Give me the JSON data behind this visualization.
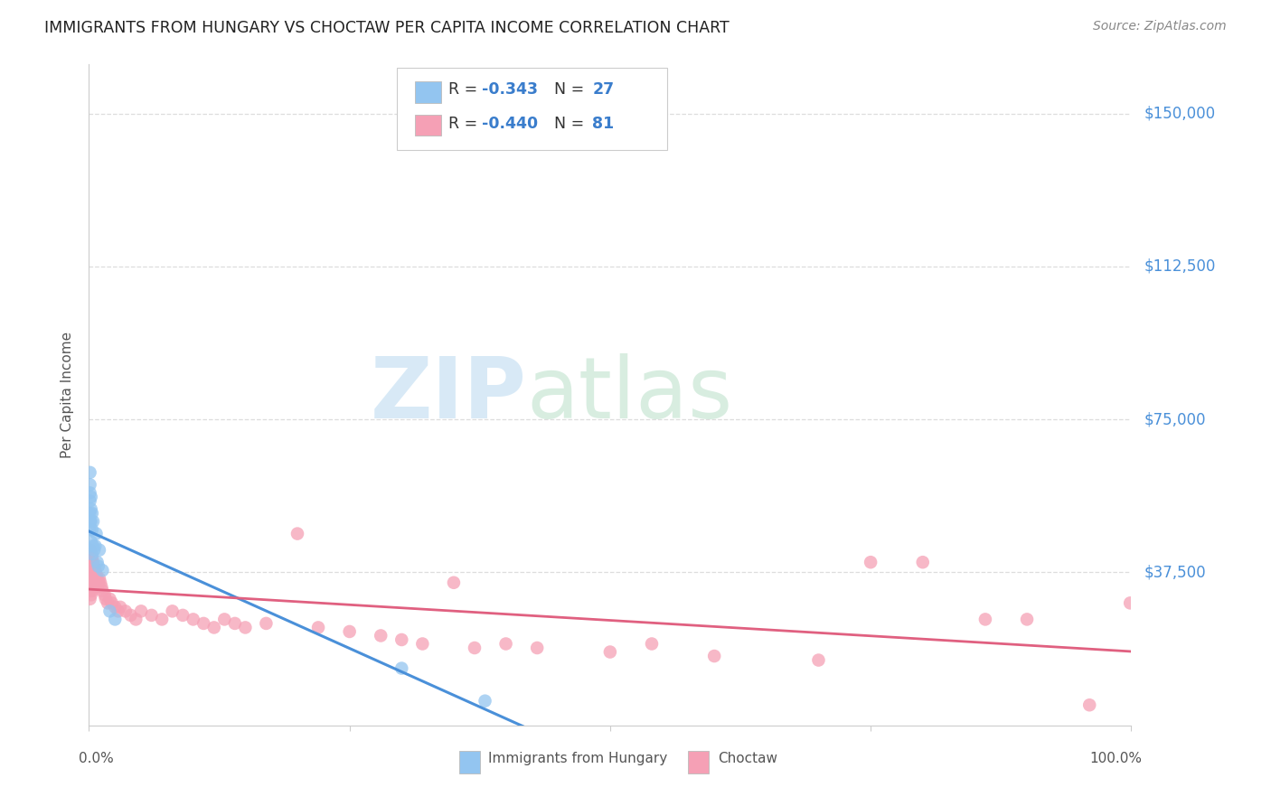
{
  "title": "IMMIGRANTS FROM HUNGARY VS CHOCTAW PER CAPITA INCOME CORRELATION CHART",
  "source": "Source: ZipAtlas.com",
  "ylabel": "Per Capita Income",
  "y_tick_labels": [
    "$150,000",
    "$112,500",
    "$75,000",
    "$37,500"
  ],
  "y_tick_values": [
    150000,
    112500,
    75000,
    37500
  ],
  "ylim": [
    0,
    162000
  ],
  "xlim": [
    0.0,
    1.0
  ],
  "background_color": "#ffffff",
  "blue_color": "#93c5f0",
  "pink_color": "#f5a0b5",
  "trendline_blue": "#4a90d9",
  "trendline_pink": "#e06080",
  "title_color": "#222222",
  "source_color": "#888888",
  "label_color": "#4a90d9",
  "axis_color": "#cccccc",
  "grid_color": "#dddddd",
  "text_color": "#555555",
  "watermark_zip_color": "#c8dff0",
  "watermark_atlas_color": "#d8ead5",
  "hun_x": [
    0.001,
    0.001,
    0.001,
    0.001,
    0.001,
    0.001,
    0.001,
    0.002,
    0.002,
    0.002,
    0.002,
    0.003,
    0.003,
    0.003,
    0.004,
    0.004,
    0.005,
    0.006,
    0.007,
    0.008,
    0.009,
    0.01,
    0.013,
    0.02,
    0.025,
    0.3,
    0.38
  ],
  "hun_y": [
    62000,
    59000,
    57000,
    55000,
    52000,
    50000,
    48000,
    56000,
    53000,
    50000,
    45000,
    52000,
    48000,
    42000,
    50000,
    44000,
    43000,
    44000,
    47000,
    40000,
    39000,
    43000,
    38000,
    28000,
    26000,
    14000,
    6000
  ],
  "cho_x": [
    0.001,
    0.001,
    0.001,
    0.001,
    0.001,
    0.001,
    0.001,
    0.001,
    0.001,
    0.002,
    0.002,
    0.002,
    0.002,
    0.002,
    0.002,
    0.003,
    0.003,
    0.003,
    0.003,
    0.003,
    0.004,
    0.004,
    0.004,
    0.004,
    0.005,
    0.005,
    0.005,
    0.006,
    0.006,
    0.007,
    0.007,
    0.008,
    0.008,
    0.009,
    0.01,
    0.011,
    0.012,
    0.013,
    0.015,
    0.016,
    0.018,
    0.02,
    0.022,
    0.025,
    0.028,
    0.03,
    0.035,
    0.04,
    0.045,
    0.05,
    0.06,
    0.07,
    0.08,
    0.09,
    0.1,
    0.11,
    0.12,
    0.13,
    0.14,
    0.15,
    0.17,
    0.2,
    0.22,
    0.25,
    0.28,
    0.3,
    0.32,
    0.35,
    0.37,
    0.4,
    0.43,
    0.5,
    0.54,
    0.6,
    0.7,
    0.75,
    0.8,
    0.86,
    0.9,
    0.96,
    0.999
  ],
  "cho_y": [
    43000,
    41000,
    39000,
    37000,
    35000,
    33000,
    31000,
    43000,
    37000,
    42000,
    40000,
    38000,
    36000,
    34000,
    32000,
    41000,
    39000,
    37000,
    35000,
    33000,
    40000,
    38000,
    36000,
    34000,
    39000,
    37000,
    35000,
    38000,
    36000,
    37000,
    35000,
    36000,
    34000,
    35000,
    36000,
    35000,
    34000,
    33000,
    32000,
    31000,
    30000,
    31000,
    30000,
    29000,
    28000,
    29000,
    28000,
    27000,
    26000,
    28000,
    27000,
    26000,
    28000,
    27000,
    26000,
    25000,
    24000,
    26000,
    25000,
    24000,
    25000,
    47000,
    24000,
    23000,
    22000,
    21000,
    20000,
    35000,
    19000,
    20000,
    19000,
    18000,
    20000,
    17000,
    16000,
    40000,
    40000,
    26000,
    26000,
    5000,
    30000
  ]
}
